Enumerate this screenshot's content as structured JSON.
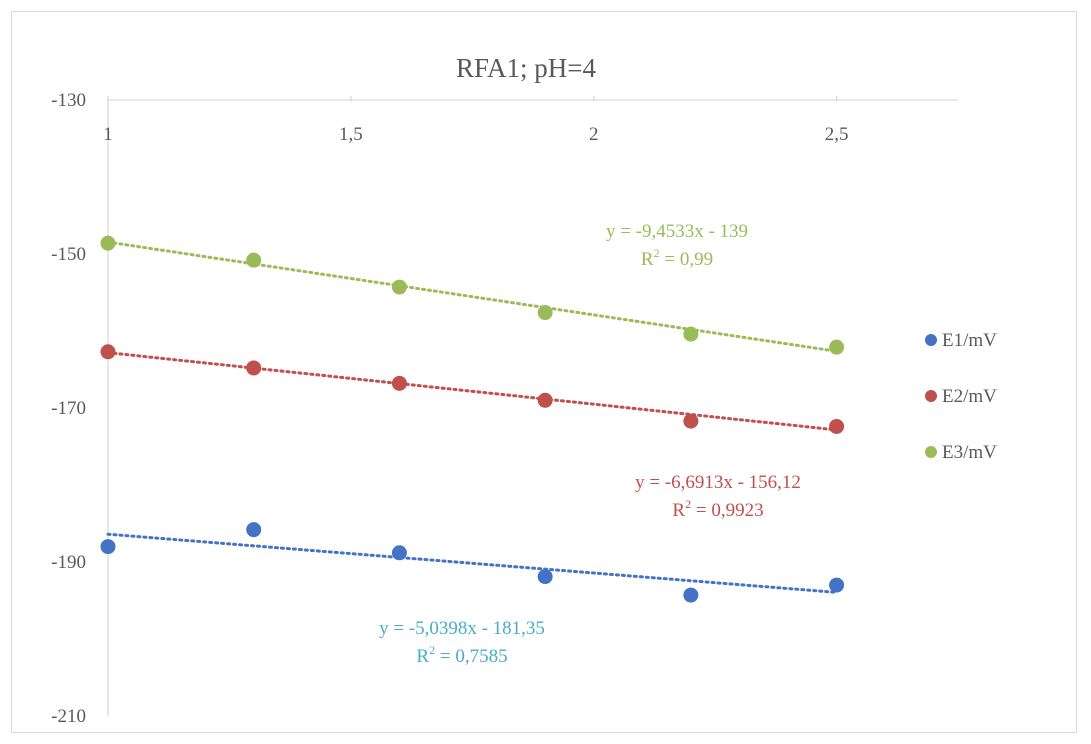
{
  "chart_data": {
    "type": "scatter",
    "title": "RFA1; pH=4",
    "xlim": [
      1,
      2.75
    ],
    "ylim": [
      -210,
      -130
    ],
    "x_ticks": [
      {
        "value": 1,
        "label": "1"
      },
      {
        "value": 1.5,
        "label": "1,5"
      },
      {
        "value": 2,
        "label": "2"
      },
      {
        "value": 2.5,
        "label": "2,5"
      }
    ],
    "y_ticks": [
      {
        "value": -130,
        "label": "-130"
      },
      {
        "value": -150,
        "label": "-150"
      },
      {
        "value": -170,
        "label": "-170"
      },
      {
        "value": -190,
        "label": "-190"
      },
      {
        "value": -210,
        "label": "-210"
      }
    ],
    "x_axis_position": "top",
    "grid": false,
    "legend_position": "right",
    "series": [
      {
        "name": "E1/mV",
        "color": "#4472c4",
        "x": [
          1,
          1.3,
          1.6,
          1.9,
          2.2,
          2.5
        ],
        "y": [
          -188,
          -185.8,
          -188.8,
          -191.9,
          -194.3,
          -193
        ],
        "trendline": {
          "slope": -5.0398,
          "intercept": -181.35,
          "color": "#4472c4",
          "equation": "y = -5,0398x - 181,35",
          "r2_prefix": "R",
          "r2_sup": "2",
          "r2_value": " = 0,7585",
          "label_color": "#4bacc6"
        }
      },
      {
        "name": "E2/mV",
        "color": "#c0504d",
        "x": [
          1,
          1.3,
          1.6,
          1.9,
          2.2,
          2.5
        ],
        "y": [
          -162.7,
          -164.8,
          -166.8,
          -169,
          -171.7,
          -172.4
        ],
        "trendline": {
          "slope": -6.6913,
          "intercept": -156.12,
          "color": "#c0504d",
          "equation": "y = -6,6913x - 156,12",
          "r2_prefix": "R",
          "r2_sup": "2",
          "r2_value": " = 0,9923",
          "label_color": "#c0504d"
        }
      },
      {
        "name": "E3/mV",
        "color": "#9bbb59",
        "x": [
          1,
          1.3,
          1.6,
          1.9,
          2.2,
          2.5
        ],
        "y": [
          -148.6,
          -150.8,
          -154.3,
          -157.6,
          -160.4,
          -162.1
        ],
        "trendline": {
          "slope": -9.4533,
          "intercept": -139,
          "color": "#9bbb59",
          "equation": "y = -9,4533x - 139",
          "r2_prefix": "R",
          "r2_sup": "2",
          "r2_value": " = 0,99",
          "label_color": "#9bbb59"
        }
      }
    ]
  }
}
